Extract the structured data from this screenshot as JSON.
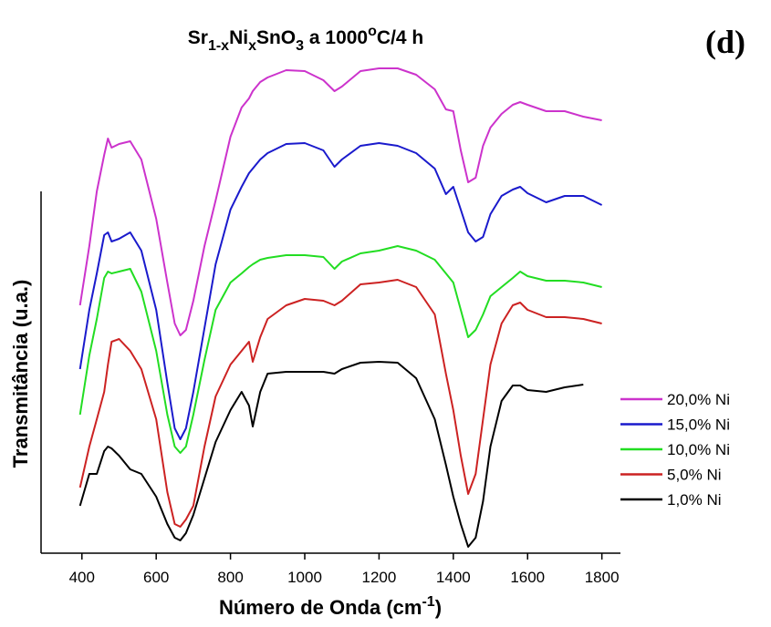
{
  "chart_data": {
    "type": "line",
    "title": [
      "Sr",
      "1-x",
      "Ni",
      "x",
      "SnO",
      "3",
      " a 1000",
      "o",
      "C/4 h"
    ],
    "annotation": "(d)",
    "x_label": [
      "Número de Onda (cm",
      "-1",
      ")"
    ],
    "y_label": "Transmitância (u.a.)",
    "xlim": [
      290,
      1850
    ],
    "ylim": [
      0,
      550
    ],
    "xticks": [
      400,
      600,
      800,
      1000,
      1200,
      1400,
      1600,
      1800
    ],
    "x": [
      395,
      420,
      440,
      460,
      470,
      480,
      500,
      530,
      560,
      600,
      630,
      650,
      665,
      680,
      700,
      730,
      760,
      800,
      830,
      850,
      860,
      880,
      900,
      950,
      1000,
      1050,
      1080,
      1100,
      1150,
      1200,
      1250,
      1300,
      1350,
      1380,
      1400,
      1420,
      1440,
      1460,
      1480,
      1500,
      1530,
      1560,
      1580,
      1600,
      1650,
      1700,
      1750,
      1800
    ],
    "series": [
      {
        "name": "20,0% Ni",
        "color": "#cc33cc",
        "values": [
          272,
          337,
          397,
          437,
          455,
          445,
          449,
          452,
          432,
          367,
          297,
          252,
          239,
          245,
          277,
          337,
          387,
          457,
          489,
          499,
          507,
          517,
          522,
          530,
          529,
          519,
          507,
          512,
          529,
          532,
          532,
          525,
          509,
          487,
          485,
          442,
          407,
          412,
          447,
          467,
          482,
          492,
          495,
          492,
          485,
          485,
          479,
          475
        ]
      },
      {
        "name": "15,0% Ni",
        "color": "#1a1acc",
        "values": [
          202,
          267,
          307,
          349,
          352,
          342,
          345,
          352,
          332,
          267,
          187,
          137,
          125,
          137,
          177,
          247,
          317,
          377,
          402,
          417,
          422,
          432,
          439,
          449,
          450,
          442,
          424,
          432,
          447,
          450,
          447,
          439,
          422,
          394,
          402,
          377,
          352,
          342,
          347,
          372,
          392,
          399,
          402,
          395,
          385,
          392,
          392,
          382
        ]
      },
      {
        "name": "10,0% Ni",
        "color": "#22dd22",
        "values": [
          152,
          217,
          257,
          302,
          309,
          307,
          309,
          312,
          287,
          222,
          152,
          117,
          110,
          117,
          152,
          212,
          267,
          297,
          307,
          314,
          317,
          322,
          324,
          327,
          327,
          325,
          312,
          320,
          329,
          332,
          337,
          332,
          322,
          307,
          297,
          267,
          237,
          245,
          262,
          282,
          292,
          302,
          309,
          304,
          299,
          299,
          297,
          292
        ]
      },
      {
        "name": "5,0% Ni",
        "color": "#cc2222",
        "values": [
          72,
          117,
          147,
          177,
          207,
          232,
          235,
          222,
          202,
          147,
          67,
          32,
          29,
          37,
          52,
          117,
          172,
          207,
          222,
          232,
          210,
          237,
          257,
          272,
          279,
          277,
          272,
          277,
          295,
          297,
          300,
          292,
          262,
          197,
          157,
          107,
          65,
          87,
          147,
          207,
          252,
          272,
          275,
          267,
          259,
          259,
          257,
          252
        ]
      },
      {
        "name": "1,0% Ni",
        "color": "#000000",
        "values": [
          52,
          87,
          87,
          112,
          117,
          115,
          107,
          92,
          87,
          62,
          32,
          17,
          14,
          22,
          42,
          82,
          122,
          157,
          177,
          162,
          139,
          177,
          197,
          199,
          199,
          199,
          197,
          202,
          209,
          210,
          209,
          192,
          147,
          97,
          62,
          32,
          7,
          17,
          57,
          117,
          167,
          184,
          184,
          179,
          177,
          182,
          185,
          null
        ]
      }
    ],
    "legend_position": "right"
  }
}
